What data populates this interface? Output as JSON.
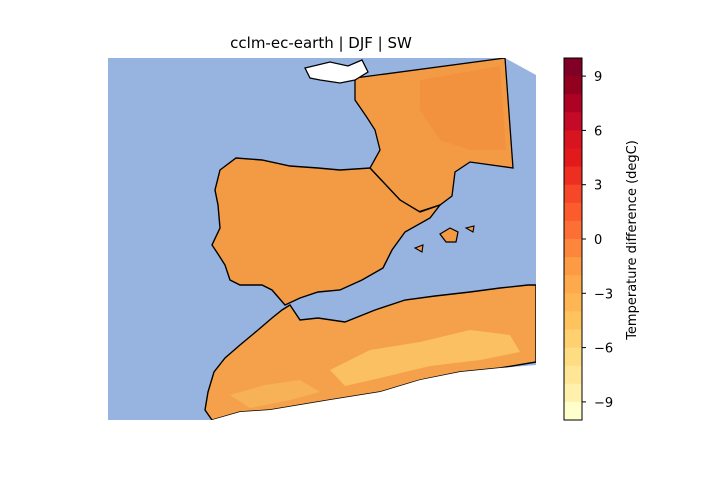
{
  "title": "cclm-ec-earth | DJF | SW",
  "colors": {
    "sea": "#97b4e0",
    "land_base": "#f39a45",
    "land_warm": "#f38d3c",
    "land_cool": "#f8b65a",
    "land_cooler": "#fbcb6a",
    "coast": "#000000",
    "outside": "#ffffff"
  },
  "regions": {
    "sea": "Sea (masked)",
    "iberia": "Iberian Peninsula",
    "france": "South-western France",
    "morocco": "Northern Morocco",
    "algeria": "Northern Algeria",
    "mallorca": "Balearic Islands",
    "coastline": "Coastline"
  },
  "colorbar": {
    "label": "Temperature difference (degC)",
    "range": [
      -10,
      10
    ],
    "ticks": [
      "9",
      "6",
      "3",
      "0",
      "−3",
      "−6",
      "−9"
    ],
    "tick_values": [
      9,
      6,
      3,
      0,
      -3,
      -6,
      -9
    ],
    "colors": [
      "#800026",
      "#93001f",
      "#ae0225",
      "#c40a26",
      "#d7141f",
      "#e31a1c",
      "#ee2e21",
      "#f64729",
      "#fc5b2e",
      "#fd6f35",
      "#fd853c",
      "#fd9a44",
      "#feaa4c",
      "#feb655",
      "#fec35f",
      "#fed06f",
      "#fedc82",
      "#fee696",
      "#fff0ad",
      "#ffffcc"
    ]
  }
}
